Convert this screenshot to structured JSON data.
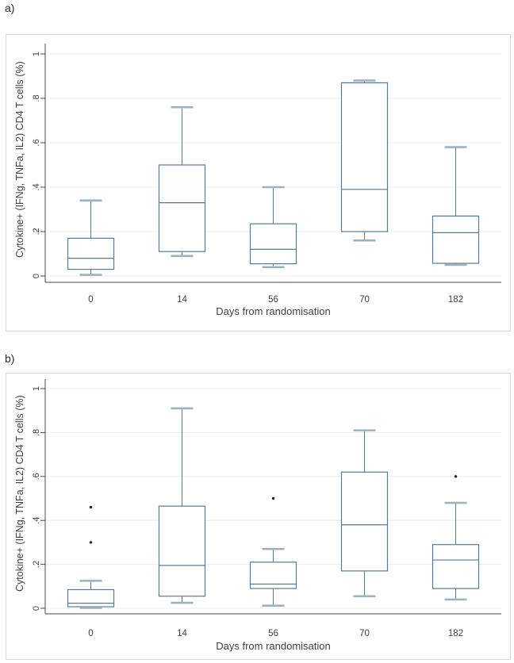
{
  "page": {
    "background": "#ffffff"
  },
  "panels": [
    {
      "tag": "a)"
    },
    {
      "tag": "b)"
    }
  ],
  "colors": {
    "box_stroke": "#5d7a8b",
    "whisker_cap": "#9fb1bb",
    "outlier": "#16293b",
    "gridline": "#e9ebed",
    "axis": "#4a4a4a",
    "text": "#3f3f3f",
    "figure_border": "#d9d9d9"
  },
  "chart_data": [
    {
      "type": "box",
      "panel": "a",
      "title": "",
      "xlabel": "Days from randomisation",
      "ylabel": "Cytokine+ (IFNg, TNFa, IL2) CD4 T cells (%)",
      "categories": [
        "0",
        "14",
        "56",
        "70",
        "182"
      ],
      "ylim": [
        0,
        1
      ],
      "yticks": [
        0,
        0.2,
        0.4,
        0.6,
        0.8,
        1
      ],
      "ytick_labels": [
        "0",
        ".2",
        ".4",
        ".6",
        ".8",
        "1"
      ],
      "grid": true,
      "boxes": [
        {
          "category": "0",
          "min": 0.005,
          "q1": 0.03,
          "median": 0.08,
          "q3": 0.17,
          "max": 0.34,
          "outliers": []
        },
        {
          "category": "14",
          "min": 0.09,
          "q1": 0.11,
          "median": 0.33,
          "q3": 0.5,
          "max": 0.76,
          "outliers": []
        },
        {
          "category": "56",
          "min": 0.04,
          "q1": 0.055,
          "median": 0.12,
          "q3": 0.235,
          "max": 0.4,
          "outliers": []
        },
        {
          "category": "70",
          "min": 0.16,
          "q1": 0.2,
          "median": 0.39,
          "q3": 0.87,
          "max": 0.88,
          "outliers": []
        },
        {
          "category": "182",
          "min": 0.05,
          "q1": 0.057,
          "median": 0.195,
          "q3": 0.27,
          "max": 0.58,
          "outliers": []
        }
      ]
    },
    {
      "type": "box",
      "panel": "b",
      "title": "",
      "xlabel": "Days from randomisation",
      "ylabel": "Cytokine+ (IFNg, TNFa, IL2) CD4 T cells (%)",
      "categories": [
        "0",
        "14",
        "56",
        "70",
        "182"
      ],
      "ylim": [
        0,
        1
      ],
      "yticks": [
        0,
        0.2,
        0.4,
        0.6,
        0.8,
        1
      ],
      "ytick_labels": [
        "0",
        ".2",
        ".4",
        ".6",
        ".8",
        "1"
      ],
      "grid": true,
      "boxes": [
        {
          "category": "0",
          "min": 0.002,
          "q1": 0.007,
          "median": 0.023,
          "q3": 0.085,
          "max": 0.125,
          "outliers": [
            0.3,
            0.46
          ]
        },
        {
          "category": "14",
          "min": 0.025,
          "q1": 0.055,
          "median": 0.195,
          "q3": 0.465,
          "max": 0.91,
          "outliers": []
        },
        {
          "category": "56",
          "min": 0.012,
          "q1": 0.09,
          "median": 0.11,
          "q3": 0.21,
          "max": 0.27,
          "outliers": [
            0.5
          ]
        },
        {
          "category": "70",
          "min": 0.055,
          "q1": 0.17,
          "median": 0.38,
          "q3": 0.62,
          "max": 0.81,
          "outliers": []
        },
        {
          "category": "182",
          "min": 0.04,
          "q1": 0.09,
          "median": 0.22,
          "q3": 0.29,
          "max": 0.48,
          "outliers": [
            0.6
          ]
        }
      ]
    }
  ]
}
